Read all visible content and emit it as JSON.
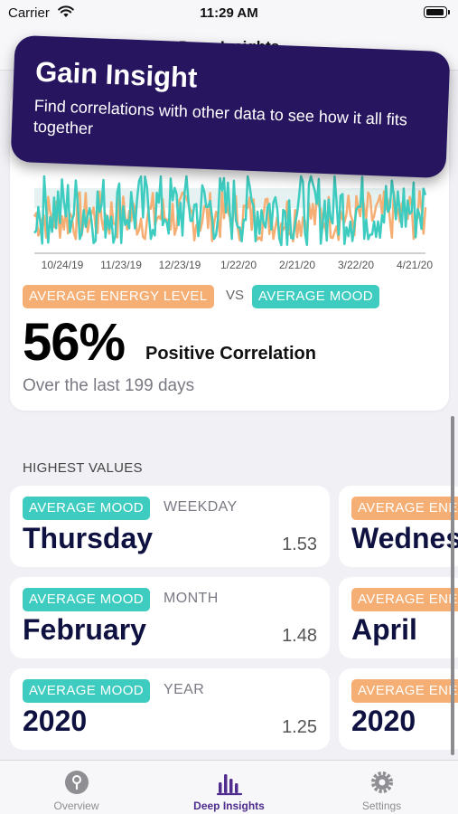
{
  "status_bar": {
    "carrier": "Carrier",
    "time": "11:29 AM"
  },
  "nav": {
    "title": "Deep Insights"
  },
  "popup": {
    "title": "Gain Insight",
    "body": "Find correlations with other data to see how it all fits together"
  },
  "chart_data": {
    "type": "line",
    "x_ticks": [
      "10/24/19",
      "11/23/19",
      "12/23/19",
      "1/22/20",
      "2/21/20",
      "3/22/20",
      "4/21/20"
    ],
    "series": [
      {
        "name": "Average Energy Level",
        "color": "#f5ae73"
      },
      {
        "name": "Average Mood",
        "color": "#3fccc0"
      }
    ],
    "days": 199
  },
  "correlation": {
    "metric_a": "AVERAGE ENERGY LEVEL",
    "vs": "VS",
    "metric_b": "AVERAGE MOOD",
    "percent": "56%",
    "label": "Positive Correlation",
    "period": "Over the last 199 days"
  },
  "highest": {
    "header": "HIGHEST VALUES",
    "cards": [
      {
        "tag": "AVERAGE MOOD",
        "kind": "WEEKDAY",
        "value": "Thursday",
        "score": "1.53"
      },
      {
        "tag": "AVERAGE MOOD",
        "kind": "MONTH",
        "value": "February",
        "score": "1.48"
      },
      {
        "tag": "AVERAGE MOOD",
        "kind": "YEAR",
        "value": "2020",
        "score": "1.25"
      }
    ],
    "side_cards": [
      {
        "tag": "AVERAGE ENE",
        "value": "Wednes"
      },
      {
        "tag": "AVERAGE ENE",
        "value": "April"
      },
      {
        "tag": "AVERAGE ENE",
        "value": "2020"
      }
    ]
  },
  "tabs": [
    {
      "label": "Overview",
      "icon": "lightbulb-icon",
      "active": false
    },
    {
      "label": "Deep Insights",
      "icon": "chart-bars-icon",
      "active": true
    },
    {
      "label": "Settings",
      "icon": "gear-icon",
      "active": false
    }
  ],
  "colors": {
    "accent": "#4f2c8e",
    "popup_bg": "#271560",
    "orange": "#f5ae73",
    "teal": "#3fccc0"
  }
}
